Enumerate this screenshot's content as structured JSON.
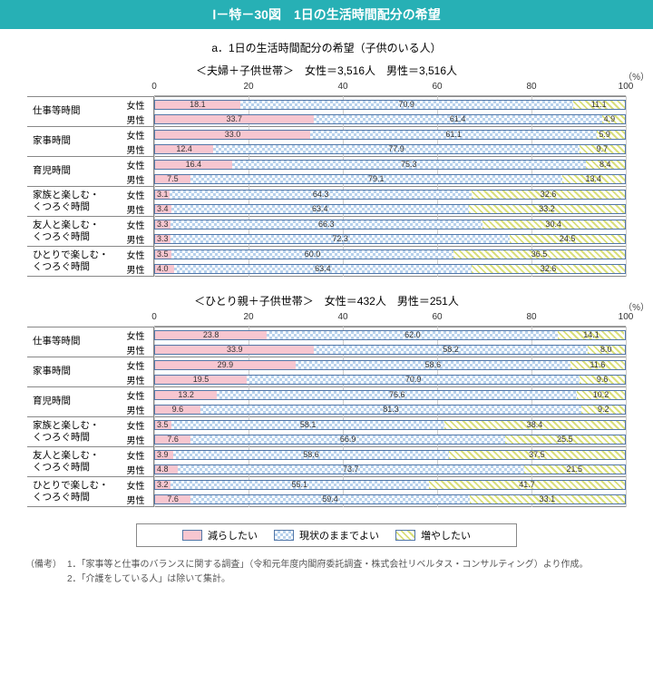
{
  "title": "Ⅰ－特－30図　1日の生活時間配分の希望",
  "subtitle": "a．1日の生活時間配分の希望（子供のいる人）",
  "colors": {
    "decrease": "#f7c6d0",
    "keep_check": "#b7d1ec",
    "increase_stripe": "#d9df7a",
    "border": "#5277a8",
    "grid": "#cccccc",
    "axis": "#aaaaaa",
    "titlebar": "#27b0b5"
  },
  "axis": {
    "min": 0,
    "max": 100,
    "ticks": [
      0,
      20,
      40,
      60,
      80,
      100
    ],
    "unit_label": "（%）"
  },
  "legend": [
    {
      "key": "decrease",
      "label": "減らしたい"
    },
    {
      "key": "keep",
      "label": "現状のままでよい"
    },
    {
      "key": "increase",
      "label": "増やしたい"
    }
  ],
  "sub_labels": {
    "female": "女性",
    "male": "男性"
  },
  "panels": [
    {
      "heading": "＜夫婦＋子供世帯＞　女性＝3,516人　男性＝3,516人",
      "categories": [
        {
          "label": "仕事等時間",
          "female": [
            18.1,
            70.9,
            11.1
          ],
          "male": [
            33.7,
            61.4,
            4.9
          ]
        },
        {
          "label": "家事時間",
          "female": [
            33.0,
            61.1,
            5.9
          ],
          "male": [
            12.4,
            77.9,
            9.7
          ]
        },
        {
          "label": "育児時間",
          "female": [
            16.4,
            75.3,
            8.4
          ],
          "male": [
            7.5,
            79.1,
            13.4
          ]
        },
        {
          "label": "家族と楽しむ・\nくつろぐ時間",
          "female": [
            3.1,
            64.3,
            32.6
          ],
          "male": [
            3.4,
            63.4,
            33.2
          ]
        },
        {
          "label": "友人と楽しむ・\nくつろぐ時間",
          "female": [
            3.3,
            66.3,
            30.4
          ],
          "male": [
            3.3,
            72.3,
            24.5
          ]
        },
        {
          "label": "ひとりで楽しむ・\nくつろぐ時間",
          "female": [
            3.5,
            60.0,
            36.5
          ],
          "male": [
            4.0,
            63.4,
            32.6
          ]
        }
      ]
    },
    {
      "heading": "＜ひとり親＋子供世帯＞　女性＝432人　男性＝251人",
      "categories": [
        {
          "label": "仕事等時間",
          "female": [
            23.8,
            62.0,
            14.1
          ],
          "male": [
            33.9,
            58.2,
            8.0
          ]
        },
        {
          "label": "家事時間",
          "female": [
            29.9,
            58.6,
            11.6
          ],
          "male": [
            19.5,
            70.9,
            9.6
          ]
        },
        {
          "label": "育児時間",
          "female": [
            13.2,
            76.6,
            10.2
          ],
          "male": [
            9.6,
            81.3,
            9.2
          ]
        },
        {
          "label": "家族と楽しむ・\nくつろぐ時間",
          "female": [
            3.5,
            58.1,
            38.4
          ],
          "male": [
            7.6,
            66.9,
            25.5
          ]
        },
        {
          "label": "友人と楽しむ・\nくつろぐ時間",
          "female": [
            3.9,
            58.6,
            37.5
          ],
          "male": [
            4.8,
            73.7,
            21.5
          ]
        },
        {
          "label": "ひとりで楽しむ・\nくつろぐ時間",
          "female": [
            3.2,
            55.1,
            41.7
          ],
          "male": [
            7.6,
            59.4,
            33.1
          ]
        }
      ]
    }
  ],
  "notes": {
    "lead": "（備考）",
    "items": [
      "1．「家事等と仕事のバランスに関する調査」（令和元年度内閣府委託調査・株式会社リベルタス・コンサルティング）より作成。",
      "2．「介護をしている人」は除いて集計。"
    ]
  }
}
